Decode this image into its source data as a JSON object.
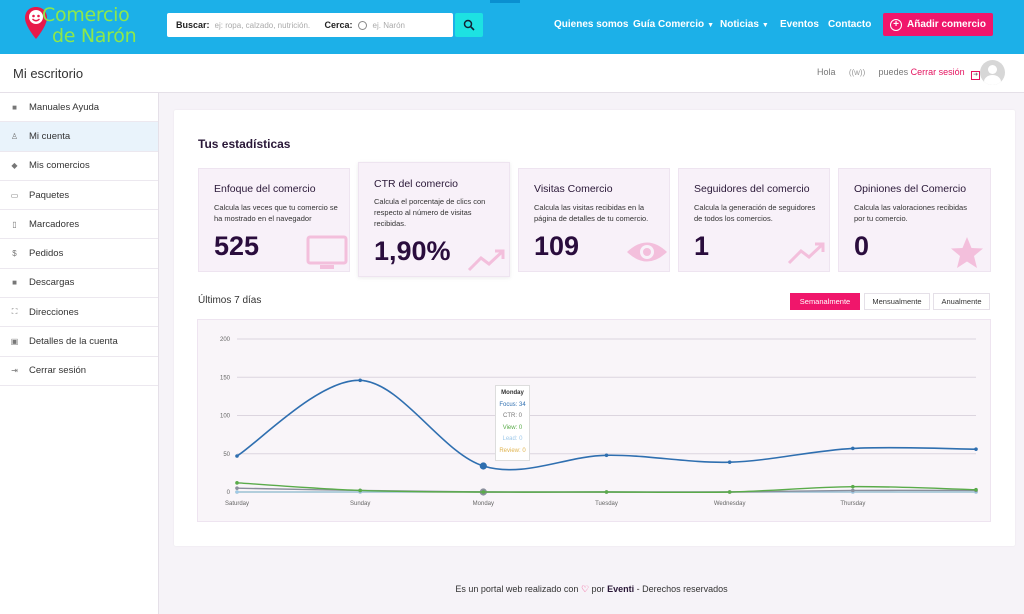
{
  "brand": {
    "line1": "Comercio",
    "line2": "de Narón"
  },
  "search": {
    "label": "Buscar:",
    "placeholder": "ej: ropa, calzado, nutrición.",
    "near_label": "Cerca:",
    "near_placeholder": "ej. Narón"
  },
  "nav": {
    "about": "Quienes somos",
    "guide": "Guía Comercio",
    "news": "Noticias",
    "events": "Eventos",
    "contact": "Contacto",
    "add": "Añadir comercio"
  },
  "subheader": {
    "title": "Mi escritorio",
    "hello": "Hola",
    "username": "((w))",
    "can": "puedes",
    "logout": "Cerrar sesión"
  },
  "sidebar": {
    "items": [
      {
        "label": "Manuales Ayuda",
        "icon": "book-icon"
      },
      {
        "label": "Mi cuenta",
        "icon": "user-icon"
      },
      {
        "label": "Mis comercios",
        "icon": "layers-icon"
      },
      {
        "label": "Paquetes",
        "icon": "briefcase-icon"
      },
      {
        "label": "Marcadores",
        "icon": "bookmark-icon"
      },
      {
        "label": "Pedidos",
        "icon": "dollar-icon"
      },
      {
        "label": "Descargas",
        "icon": "download-icon"
      },
      {
        "label": "Direcciones",
        "icon": "expand-icon"
      },
      {
        "label": "Detalles de la cuenta",
        "icon": "id-card-icon"
      },
      {
        "label": "Cerrar sesión",
        "icon": "logout-icon"
      }
    ]
  },
  "stats": {
    "title": "Tus estadísticas",
    "cards": [
      {
        "heading": "Enfoque del comercio",
        "desc": "Calcula las veces que tu comercio se ha mostrado en el navegador",
        "value": "525",
        "icon": "monitor-icon"
      },
      {
        "heading": "CTR del comercio",
        "desc": "Calcula el porcentaje de clics con respecto al número de visitas recibidas.",
        "value": "1,90%",
        "icon": "trend-icon"
      },
      {
        "heading": "Visitas Comercio",
        "desc": "Calcula las visitas recibidas en la página de detalles de tu comercio.",
        "value": "109",
        "icon": "eye-icon"
      },
      {
        "heading": "Seguidores del comercio",
        "desc": "Calcula la generación de seguidores de todos los comercios.",
        "value": "1",
        "icon": "trend-icon"
      },
      {
        "heading": "Opiniones del Comercio",
        "desc": "Calcula las valoraciones recibidas por tu comercio.",
        "value": "0",
        "icon": "star-icon"
      }
    ],
    "period_label": "Últimos 7 días",
    "tabs": {
      "weekly": "Semanalmente",
      "monthly": "Mensualmente",
      "yearly": "Anualmente"
    }
  },
  "tooltip": {
    "title": "Monday",
    "focus": "Focus: 34",
    "ctr": "CTR: 0",
    "view": "View: 0",
    "lead": "Lead: 0",
    "review": "Review: 0"
  },
  "colors": {
    "topbar": "#1cb0e8",
    "accent_pink": "#f0166b",
    "focus_line": "#2f6fb0",
    "view_line": "#5aab4a",
    "lead_line": "#9ec9ea",
    "review_line": "#e7c36a",
    "ctr_line": "#8a8f9c"
  },
  "chart_data": {
    "type": "line",
    "categories": [
      "Saturday",
      "Sunday",
      "Monday",
      "Tuesday",
      "Wednesday",
      "Thursday",
      ""
    ],
    "ylim": [
      0,
      200
    ],
    "yticks": [
      0,
      50,
      100,
      150,
      200
    ],
    "series": [
      {
        "name": "Focus",
        "values": [
          47,
          146,
          34,
          48,
          39,
          57,
          56
        ]
      },
      {
        "name": "CTR",
        "values": [
          5,
          2,
          0,
          0,
          0,
          2,
          2
        ]
      },
      {
        "name": "View",
        "values": [
          12,
          2,
          0,
          0,
          0,
          7,
          3
        ]
      },
      {
        "name": "Lead",
        "values": [
          0,
          0,
          0,
          0,
          0,
          0,
          0
        ]
      },
      {
        "name": "Review",
        "values": [
          0,
          0,
          0,
          0,
          0,
          0,
          0
        ]
      }
    ]
  },
  "footer": {
    "prefix": "Es un portal web realizado con",
    "by": "por",
    "company": "Eventi",
    "suffix": "- Derechos reservados"
  }
}
